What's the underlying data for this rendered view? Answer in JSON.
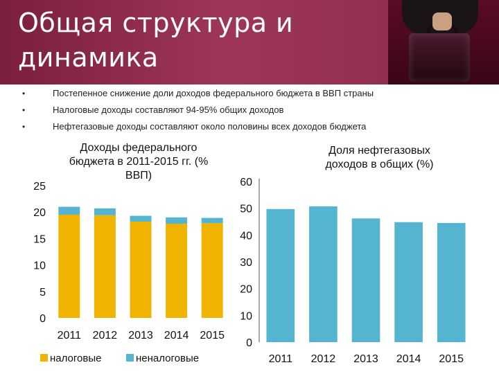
{
  "slide": {
    "title_line1": "Общая структура и",
    "title_line2": "динамика",
    "bullets": [
      "Постепенное снижение доли доходов федерального бюджета в ВВП страны",
      "Налоговые доходы составляют 94-95% общих доходов",
      "Нефтегазовые доходы составляют около половины всех доходов бюджета"
    ],
    "bullet_glyph": "•"
  },
  "colors": {
    "header": "#9e3658",
    "tax": "#f0b400",
    "nontax": "#55b5d0",
    "oilgas": "#55b5d0"
  },
  "chart_data": [
    {
      "type": "bar",
      "stacked": true,
      "title_lines": [
        "Доходы федерального",
        "бюджета в 2011-2015 гг. (%",
        "ВВП)"
      ],
      "categories": [
        "2011",
        "2012",
        "2013",
        "2014",
        "2015"
      ],
      "series": [
        {
          "name": "налоговые",
          "values": [
            19.5,
            19.4,
            18.2,
            17.8,
            17.9
          ]
        },
        {
          "name": "неналоговые",
          "values": [
            1.5,
            1.3,
            1.1,
            1.2,
            1.0
          ]
        }
      ],
      "yticks": [
        "0",
        "5",
        "10",
        "15",
        "20",
        "25"
      ],
      "ylim": [
        0,
        25
      ],
      "legend": "bottom"
    },
    {
      "type": "bar",
      "title_lines": [
        "Доля нефтегазовых",
        "доходов в общих (%)"
      ],
      "categories": [
        "2011",
        "2012",
        "2013",
        "2014",
        "2015"
      ],
      "values": [
        49.7,
        50.7,
        46.2,
        44.8,
        44.5
      ],
      "yticks": [
        "0",
        "10",
        "20",
        "30",
        "40",
        "50",
        "60"
      ],
      "ylim": [
        0,
        60
      ],
      "grid": false
    }
  ]
}
